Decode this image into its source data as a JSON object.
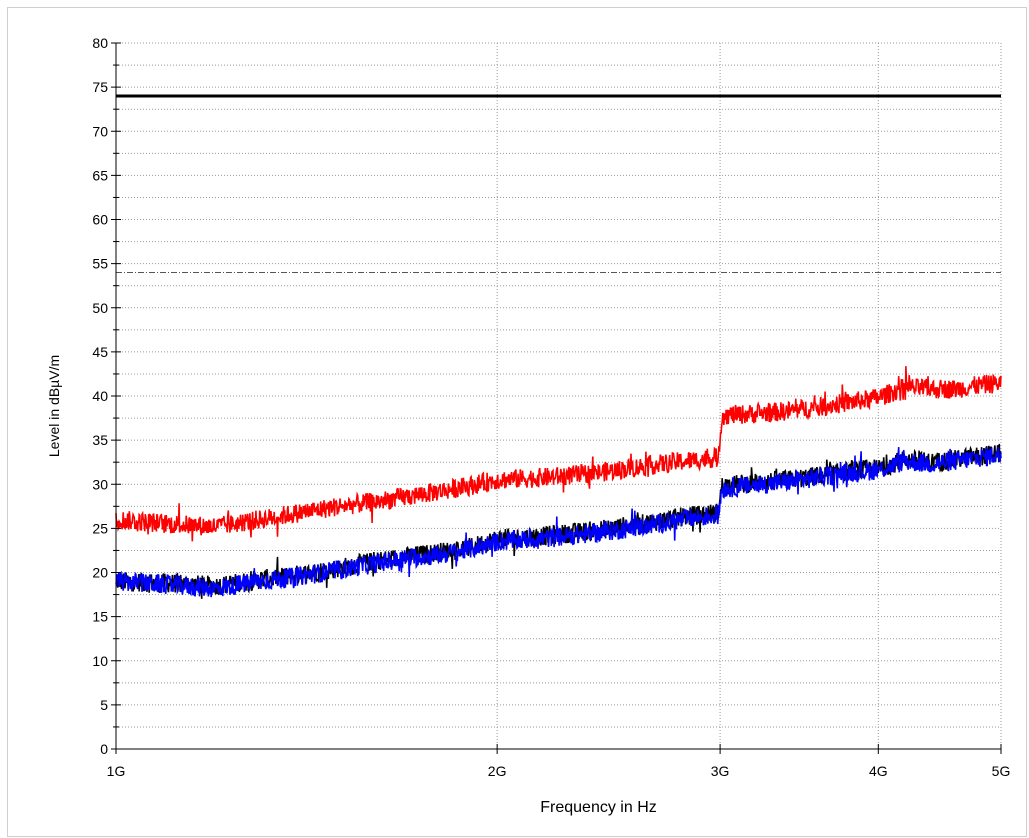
{
  "chart_data": {
    "type": "line",
    "xlabel": "Frequency in Hz",
    "ylabel": "Level in dBµV/m",
    "x_scale": "log",
    "xlim": [
      1000000000,
      5000000000
    ],
    "ylim": [
      0,
      80
    ],
    "x_ticks": [
      {
        "value": 1000000000,
        "label": "1G"
      },
      {
        "value": 2000000000,
        "label": "2G"
      },
      {
        "value": 3000000000,
        "label": "3G"
      },
      {
        "value": 4000000000,
        "label": "4G"
      },
      {
        "value": 5000000000,
        "label": "5G"
      }
    ],
    "y_ticks": [
      0,
      5,
      10,
      15,
      20,
      25,
      30,
      35,
      40,
      45,
      50,
      55,
      60,
      65,
      70,
      75,
      80
    ],
    "grid": true,
    "limit_lines": [
      {
        "value": 74,
        "color": "#000000",
        "style": "solid"
      },
      {
        "value": 54,
        "color": "#555555",
        "style": "dashdot"
      }
    ],
    "series": [
      {
        "color": "#000000",
        "x": [
          1000000000,
          1100000000,
          1200000000,
          1300000000,
          1400000000,
          1500000000,
          1600000000,
          1700000000,
          1800000000,
          1900000000,
          2000000000,
          2200000000,
          2400000000,
          2600000000,
          2800000000,
          2990000000,
          3010000000,
          3200000000,
          3400000000,
          3600000000,
          3800000000,
          4000000000,
          4200000000,
          4400000000,
          4600000000,
          4800000000,
          5000000000
        ],
        "values": [
          19,
          18.8,
          18.5,
          19.2,
          19.8,
          20.5,
          21.3,
          21.8,
          22.3,
          22.8,
          23.8,
          24.2,
          24.8,
          25.5,
          26.3,
          26.8,
          29.8,
          30.2,
          30.5,
          31,
          31.5,
          31.8,
          32.8,
          32.5,
          32.8,
          33.2,
          33.5
        ]
      },
      {
        "color": "#0000ff",
        "x": [
          1000000000,
          1100000000,
          1200000000,
          1300000000,
          1400000000,
          1500000000,
          1600000000,
          1700000000,
          1800000000,
          1900000000,
          2000000000,
          2200000000,
          2400000000,
          2600000000,
          2800000000,
          2990000000,
          3010000000,
          3200000000,
          3400000000,
          3600000000,
          3800000000,
          4000000000,
          4200000000,
          4400000000,
          4600000000,
          4800000000,
          5000000000
        ],
        "values": [
          19,
          18.6,
          18.2,
          19,
          19.6,
          20.3,
          21,
          21.6,
          22,
          22.6,
          23.5,
          23.9,
          24.5,
          25.2,
          26,
          26.5,
          29.5,
          29.9,
          30.3,
          30.8,
          31.3,
          31.6,
          32.6,
          32.3,
          32.6,
          33,
          33.4
        ]
      },
      {
        "color": "#ff0000",
        "x": [
          1000000000,
          1100000000,
          1200000000,
          1300000000,
          1400000000,
          1500000000,
          1600000000,
          1700000000,
          1800000000,
          1900000000,
          2000000000,
          2200000000,
          2400000000,
          2600000000,
          2800000000,
          2990000000,
          3010000000,
          3200000000,
          3400000000,
          3600000000,
          3800000000,
          4000000000,
          4200000000,
          4400000000,
          4600000000,
          4800000000,
          5000000000
        ],
        "values": [
          26,
          25.5,
          25.2,
          26,
          26.8,
          27.5,
          28,
          28.6,
          29.2,
          29.8,
          30.5,
          30.8,
          31.3,
          32,
          32.6,
          33,
          37.8,
          38,
          38.3,
          38.8,
          39.3,
          39.8,
          41,
          40.8,
          40.8,
          41.2,
          41.5
        ]
      }
    ]
  }
}
